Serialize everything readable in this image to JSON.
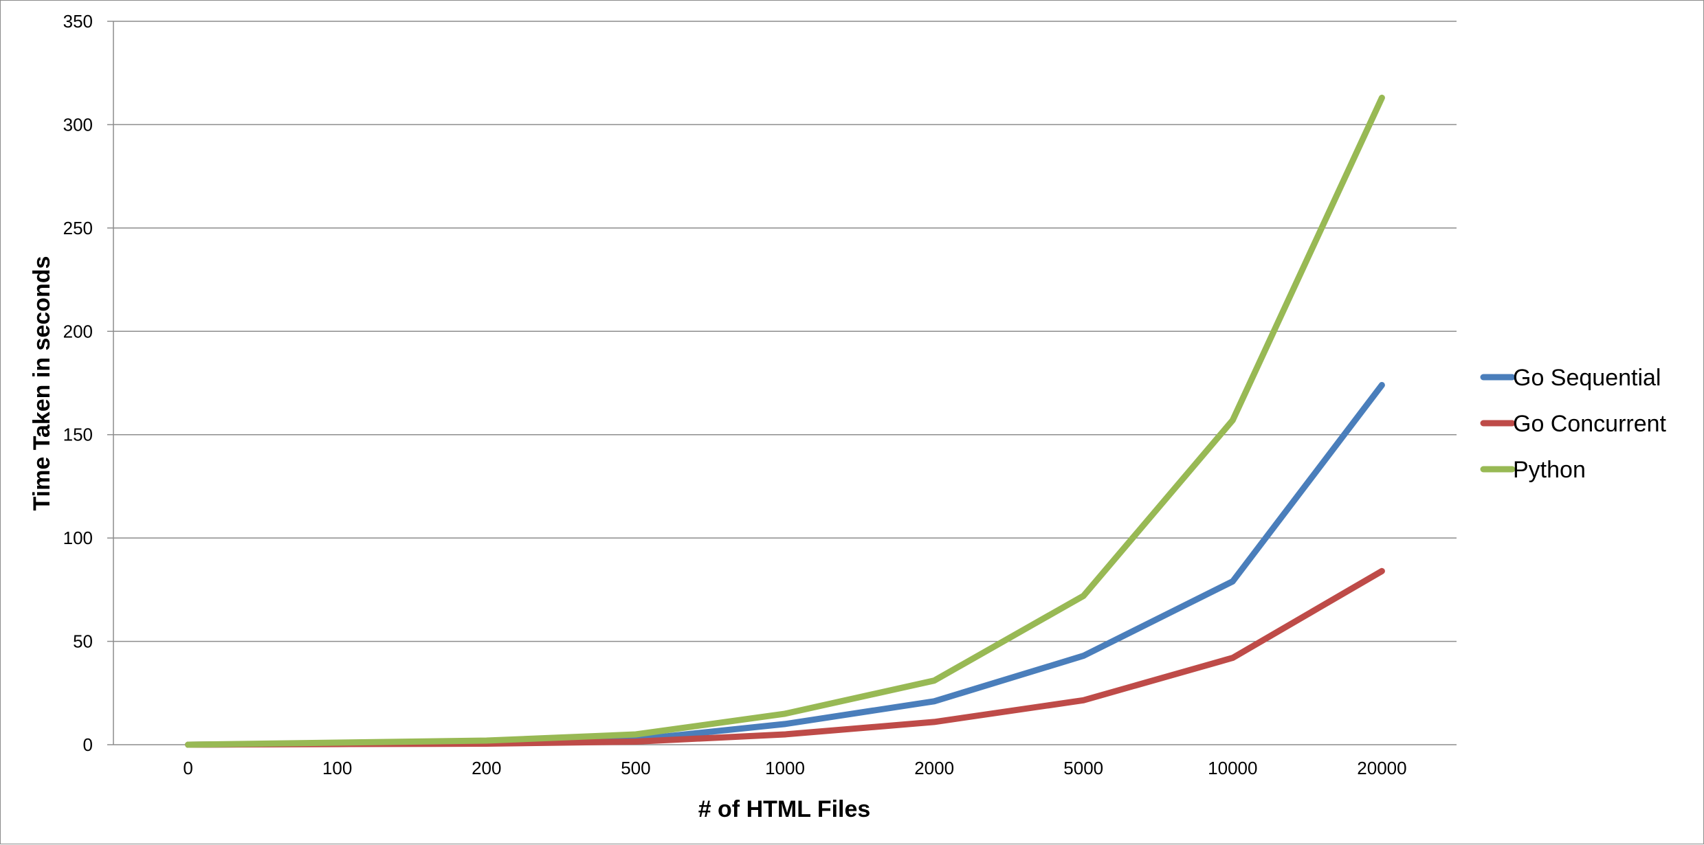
{
  "chart_data": {
    "type": "line",
    "title": "",
    "xlabel": "# of HTML Files",
    "ylabel": "Time Taken in seconds",
    "categories": [
      "0",
      "100",
      "200",
      "500",
      "1000",
      "2000",
      "5000",
      "10000",
      "20000"
    ],
    "ylim": [
      0,
      350
    ],
    "yticks": [
      "0",
      "50",
      "100",
      "150",
      "200",
      "250",
      "300",
      "350"
    ],
    "grid": true,
    "legend_position": "right",
    "series": [
      {
        "name": "Go Sequential",
        "color": "#4a7ebb",
        "values": [
          0,
          0.5,
          1,
          2.5,
          10,
          21,
          43,
          79,
          174
        ]
      },
      {
        "name": "Go Concurrent",
        "color": "#be4b48",
        "values": [
          0,
          0.3,
          0.5,
          1.5,
          5,
          11,
          21.5,
          42,
          84
        ]
      },
      {
        "name": "Python",
        "color": "#98b954",
        "values": [
          0,
          1,
          2,
          5,
          15,
          31,
          72,
          157,
          313
        ]
      }
    ]
  }
}
